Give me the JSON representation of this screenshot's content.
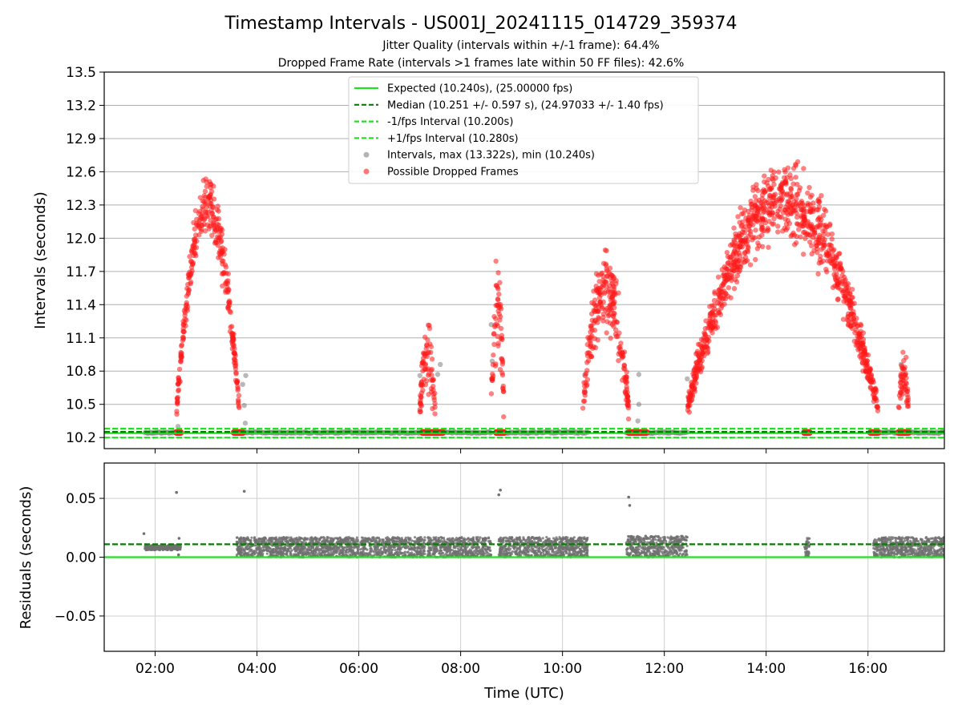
{
  "chart_data": [
    {
      "type": "scatter",
      "title": "Timestamp Intervals - US001J_20241115_014729_359374",
      "subtitle_1": "Jitter Quality (intervals within +/-1 frame): 64.4%",
      "subtitle_2": "Dropped Frame Rate (intervals >1 frames late within 50 FF files): 42.6%",
      "ylabel": "Intervals (seconds)",
      "xlim_hours": [
        1.0,
        17.5
      ],
      "ylim": [
        10.1,
        13.5
      ],
      "yticks": [
        "10.2",
        "10.5",
        "10.8",
        "11.1",
        "11.4",
        "11.7",
        "12.0",
        "12.3",
        "12.6",
        "12.9",
        "13.2",
        "13.5"
      ],
      "grid": true,
      "legend_position": "top-center",
      "lines": [
        {
          "name": "Expected (10.240s), (25.00000 fps)",
          "y": 10.24,
          "color": "#22e022",
          "style": "solid"
        },
        {
          "name": "Median (10.251 +/- 0.597 s), (24.97033 +/- 1.40 fps)",
          "y": 10.251,
          "color": "#0a7a0a",
          "style": "dashed"
        },
        {
          "name": "-1/fps Interval (10.200s)",
          "y": 10.2,
          "color": "#22e022",
          "style": "dashed"
        },
        {
          "name": "+1/fps Interval (10.280s)",
          "y": 10.28,
          "color": "#22e022",
          "style": "dashed"
        }
      ],
      "series": [
        {
          "name": "Intervals, max (13.322s), min (10.240s)",
          "color": "#808080",
          "baseline_y": 10.245,
          "segments": [
            [
              1.8,
              2.5
            ],
            [
              3.6,
              7.3
            ],
            [
              7.35,
              8.6
            ],
            [
              8.75,
              10.5
            ],
            [
              11.25,
              12.45
            ],
            [
              14.75,
              14.85
            ],
            [
              16.1,
              17.5
            ]
          ],
          "stray_points": [
            {
              "x": 2.45,
              "y": 10.3
            },
            {
              "x": 3.72,
              "y": 10.68
            },
            {
              "x": 3.78,
              "y": 10.76
            },
            {
              "x": 3.75,
              "y": 10.49
            },
            {
              "x": 3.77,
              "y": 10.33
            },
            {
              "x": 7.2,
              "y": 10.76
            },
            {
              "x": 7.55,
              "y": 10.77
            },
            {
              "x": 7.6,
              "y": 10.86
            },
            {
              "x": 8.6,
              "y": 11.22
            },
            {
              "x": 8.62,
              "y": 10.89
            },
            {
              "x": 10.45,
              "y": 10.61
            },
            {
              "x": 10.44,
              "y": 10.77
            },
            {
              "x": 11.5,
              "y": 10.5
            },
            {
              "x": 11.5,
              "y": 10.77
            },
            {
              "x": 11.48,
              "y": 10.35
            },
            {
              "x": 12.45,
              "y": 10.73
            },
            {
              "x": 16.65,
              "y": 10.86
            }
          ]
        },
        {
          "name": "Possible Dropped Frames",
          "color": "#ff1a1a",
          "clusters": [
            {
              "x": [
                2.42,
                3.65
              ],
              "peak": 12.3,
              "spread": 0.28
            },
            {
              "x": [
                7.2,
                7.5
              ],
              "peak": 10.95,
              "spread": 0.35
            },
            {
              "x": [
                8.6,
                8.85
              ],
              "peak": 11.4,
              "spread": 0.5
            },
            {
              "x": [
                10.4,
                11.3
              ],
              "peak": 11.55,
              "spread": 0.4
            },
            {
              "x": [
                12.45,
                16.2
              ],
              "peak": 12.35,
              "spread": 0.35
            },
            {
              "x": [
                16.6,
                16.8
              ],
              "peak": 10.75,
              "spread": 0.25
            }
          ],
          "baseline_clusters": [
            [
              2.42,
              2.5
            ],
            [
              3.55,
              3.72
            ],
            [
              7.25,
              7.65
            ],
            [
              8.7,
              8.85
            ],
            [
              11.3,
              11.65
            ],
            [
              14.75,
              14.85
            ],
            [
              16.05,
              16.2
            ],
            [
              16.6,
              16.8
            ]
          ]
        }
      ]
    },
    {
      "type": "scatter",
      "xlabel": "Time (UTC)",
      "ylabel": "Residuals (seconds)",
      "xlim_hours": [
        1.0,
        17.5
      ],
      "ylim": [
        -0.08,
        0.08
      ],
      "yticks": [
        "−0.05",
        "0.00",
        "0.05"
      ],
      "ytick_values": [
        -0.05,
        0.0,
        0.05
      ],
      "xticks": [
        "02:00",
        "04:00",
        "06:00",
        "08:00",
        "10:00",
        "12:00",
        "14:00",
        "16:00"
      ],
      "xtick_values": [
        2,
        4,
        6,
        8,
        10,
        12,
        14,
        16
      ],
      "grid": true,
      "lines": [
        {
          "y": 0.0,
          "color": "#22e022",
          "style": "solid"
        },
        {
          "y": 0.011,
          "color": "#0a7a0a",
          "style": "dashed"
        }
      ],
      "series": [
        {
          "color": "#707070",
          "bands": [
            {
              "x": [
                1.8,
                2.5
              ],
              "lo": 0.006,
              "hi": 0.01
            },
            {
              "x": [
                3.6,
                7.3
              ],
              "lo": 0.0,
              "hi": 0.017
            },
            {
              "x": [
                7.35,
                8.6
              ],
              "lo": 0.0,
              "hi": 0.017
            },
            {
              "x": [
                8.75,
                10.5
              ],
              "lo": 0.0,
              "hi": 0.017
            },
            {
              "x": [
                11.25,
                12.45
              ],
              "lo": 0.0,
              "hi": 0.018
            },
            {
              "x": [
                14.75,
                14.85
              ],
              "lo": 0.0,
              "hi": 0.017
            },
            {
              "x": [
                16.1,
                17.5
              ],
              "lo": 0.0,
              "hi": 0.017
            }
          ],
          "stray_points": [
            {
              "x": 1.78,
              "y": 0.02
            },
            {
              "x": 2.42,
              "y": 0.055
            },
            {
              "x": 2.47,
              "y": 0.016
            },
            {
              "x": 2.46,
              "y": 0.002
            },
            {
              "x": 3.75,
              "y": 0.056
            },
            {
              "x": 8.78,
              "y": 0.057
            },
            {
              "x": 8.75,
              "y": 0.053
            },
            {
              "x": 11.3,
              "y": 0.051
            },
            {
              "x": 11.32,
              "y": 0.044
            },
            {
              "x": 7.15,
              "y": 0.003
            }
          ]
        }
      ]
    }
  ]
}
